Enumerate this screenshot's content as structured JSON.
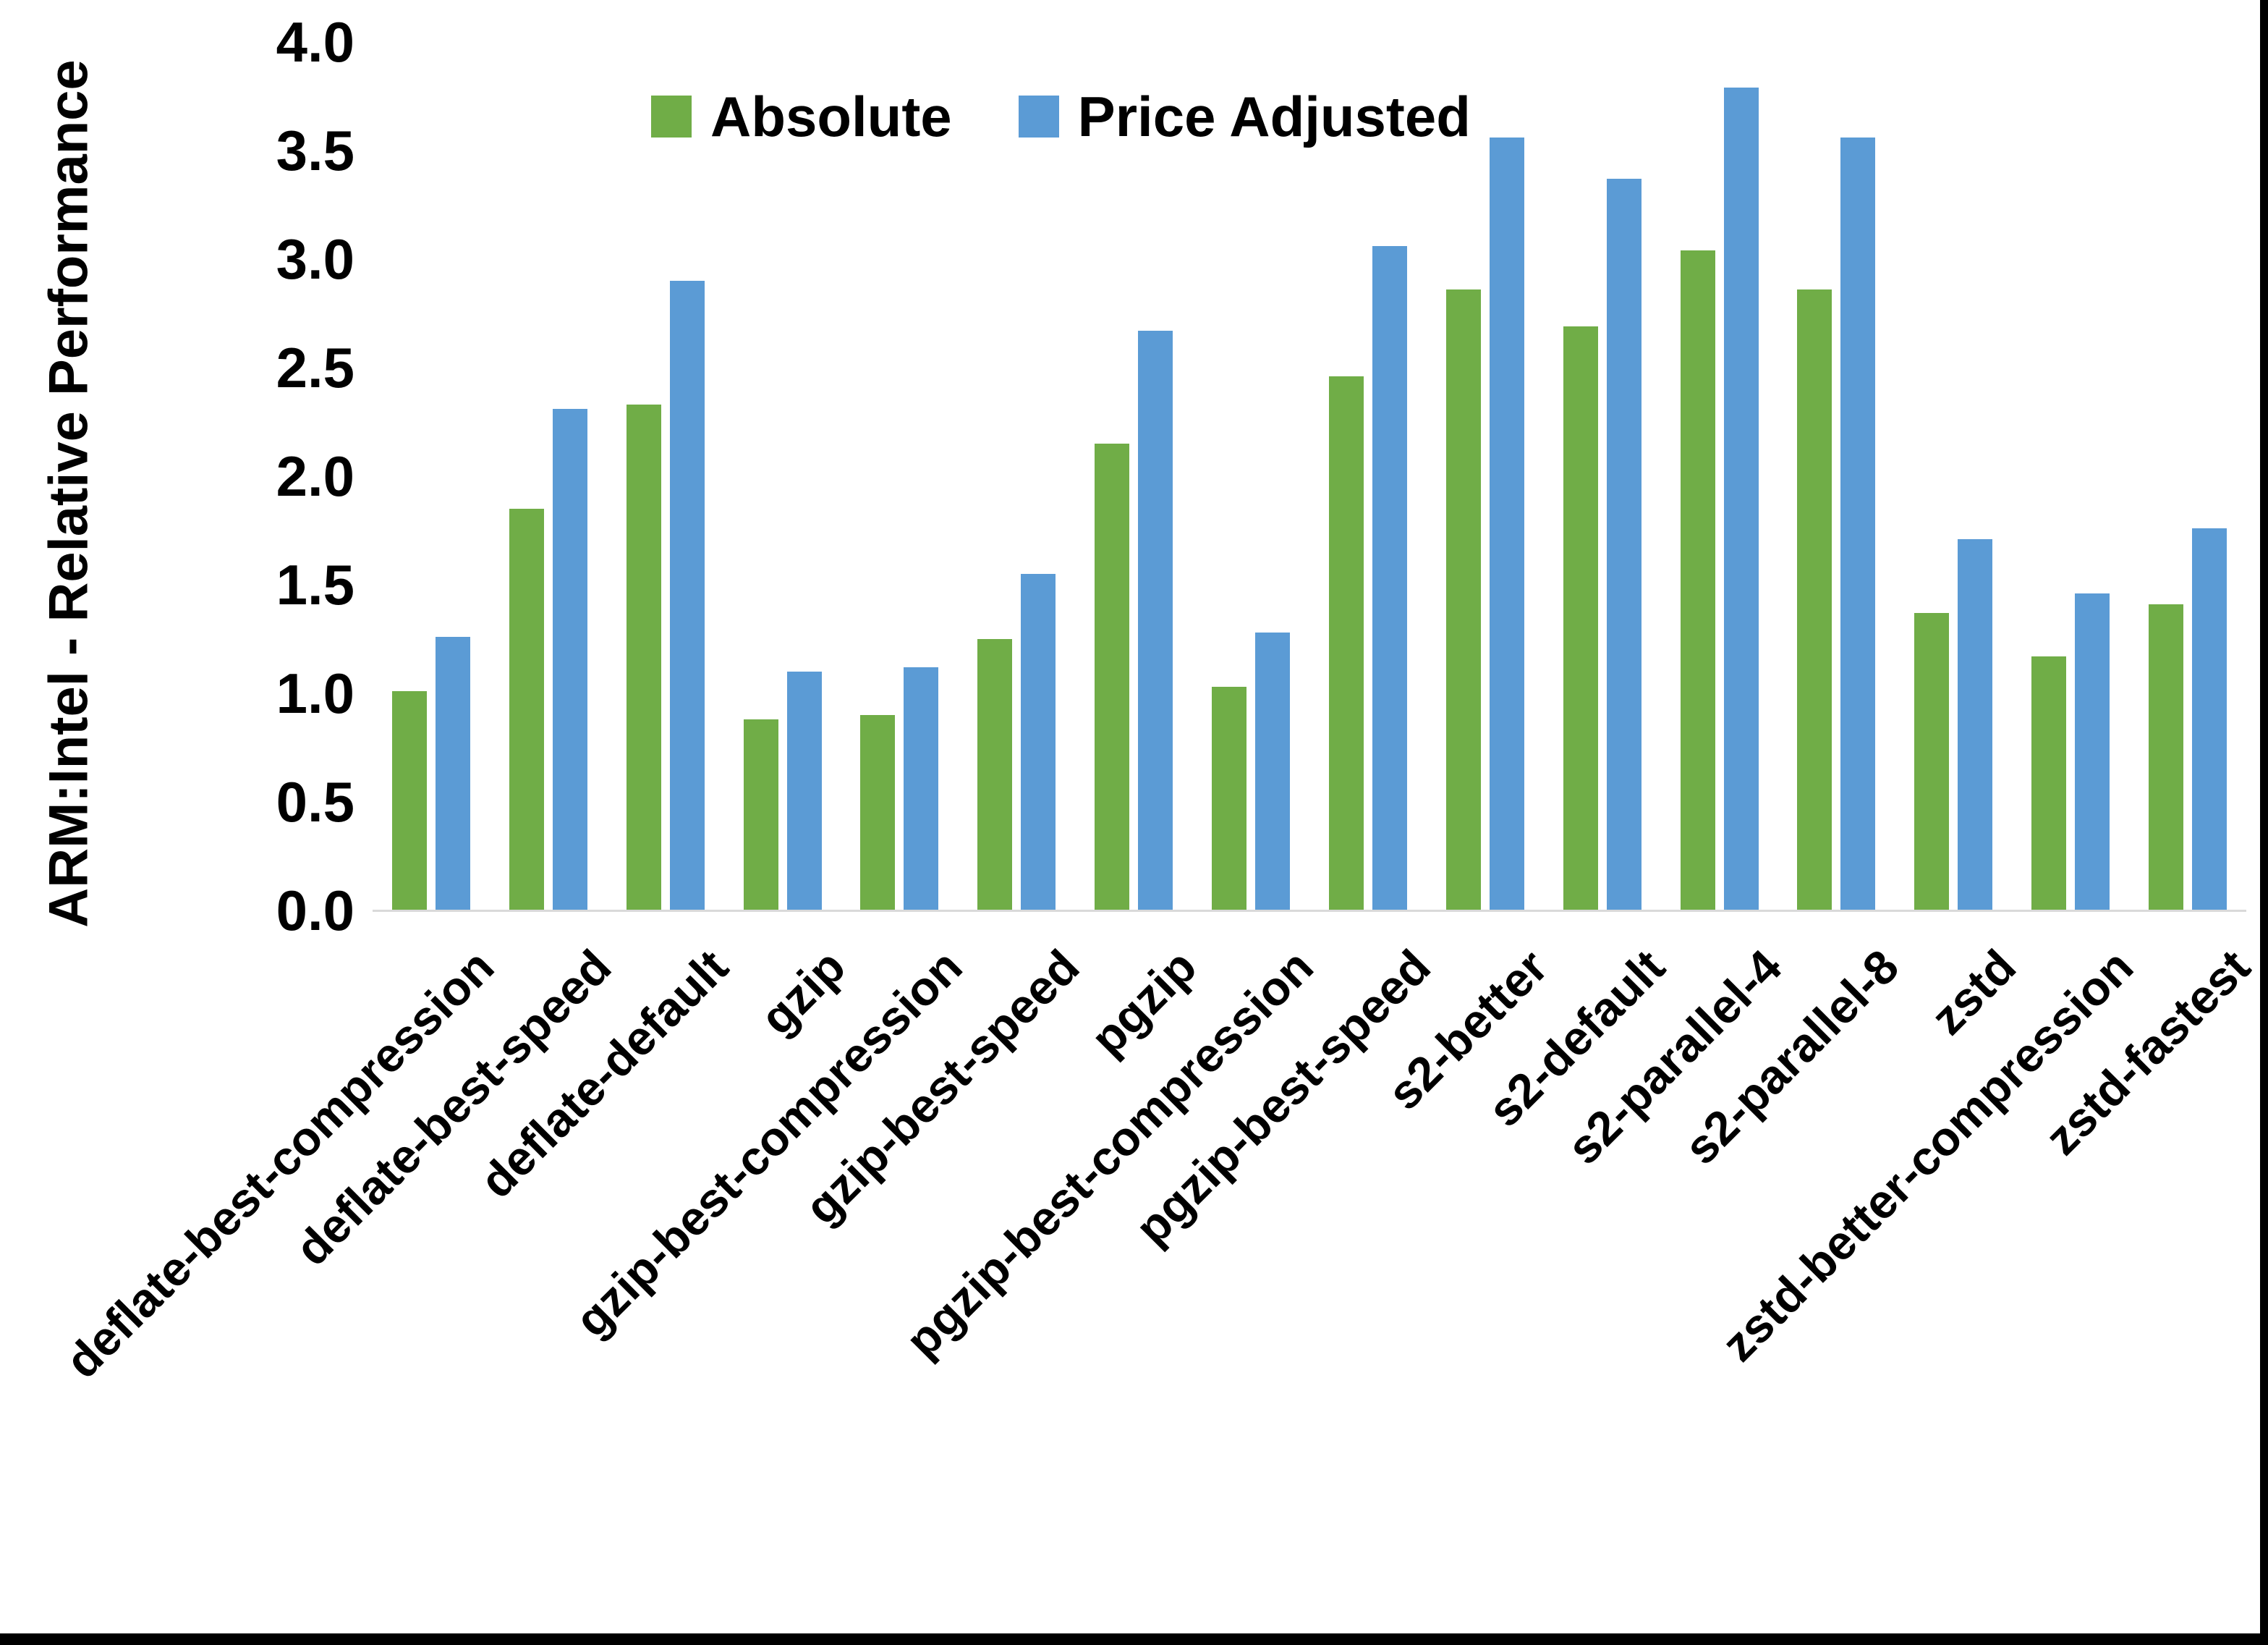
{
  "figure": {
    "background": "#ffffff",
    "frame_color": "#000000",
    "axis_line_color": "#d9d9d9",
    "text_color": "#000000"
  },
  "chart_data": {
    "type": "bar",
    "title": "",
    "xlabel": "",
    "ylabel": "ARM:Intel - Relative Performance",
    "ylim": [
      0.0,
      4.0
    ],
    "ytick_step": 0.5,
    "yticks": [
      "0.0",
      "0.5",
      "1.0",
      "1.5",
      "2.0",
      "2.5",
      "3.0",
      "3.5",
      "4.0"
    ],
    "grid": false,
    "legend_position": "top-center",
    "categories": [
      "deflate-best-compression",
      "deflate-best-speed",
      "deflate-default",
      "gzip",
      "gzip-best-compression",
      "gzip-best-speed",
      "pgzip",
      "pgzip-best-compression",
      "pgzip-best-speed",
      "s2-better",
      "s2-default",
      "s2-parallel-4",
      "s2-parallel-8",
      "zstd",
      "zstd-better-compression",
      "zstd-fastest"
    ],
    "series": [
      {
        "name": "Absolute",
        "color": "#70AD47",
        "values": [
          1.01,
          1.85,
          2.33,
          0.88,
          0.9,
          1.25,
          2.15,
          1.03,
          2.46,
          2.86,
          2.69,
          3.04,
          2.86,
          1.37,
          1.17,
          1.41
        ]
      },
      {
        "name": "Price Adjusted",
        "color": "#5B9BD5",
        "values": [
          1.26,
          2.31,
          2.9,
          1.1,
          1.12,
          1.55,
          2.67,
          1.28,
          3.06,
          3.56,
          3.37,
          3.79,
          3.56,
          1.71,
          1.46,
          1.76
        ]
      }
    ]
  }
}
